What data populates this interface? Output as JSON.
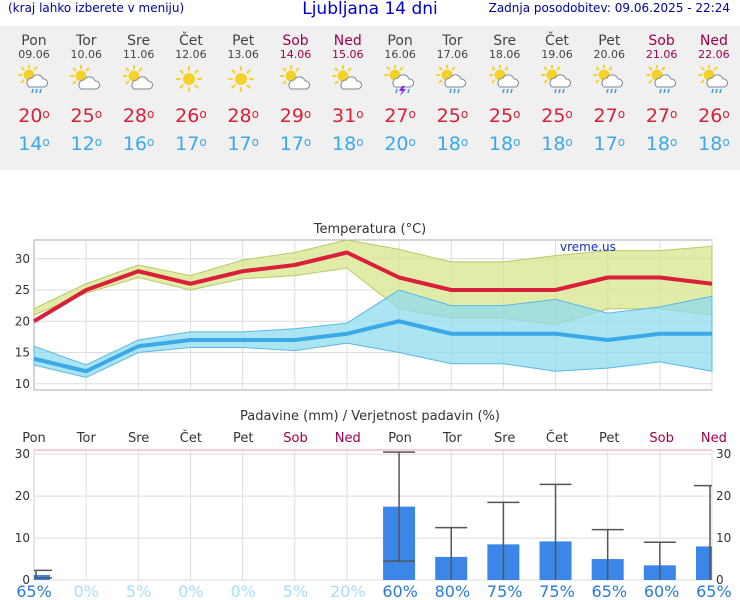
{
  "header": {
    "menu_hint": "(kraj lahko izberete v meniju)",
    "title": "Ljubljana 14 dni",
    "updated": "Zadnja posodobitev: 09.06.2025 - 22:24"
  },
  "days": [
    {
      "name": "Pon",
      "date": "09.06",
      "weekend": false,
      "icon": "sun-cloud-rain-icon",
      "tmax": "20",
      "tmin": "14"
    },
    {
      "name": "Tor",
      "date": "10.06",
      "weekend": false,
      "icon": "sun-cloud-icon",
      "tmax": "25",
      "tmin": "12"
    },
    {
      "name": "Sre",
      "date": "11.06",
      "weekend": false,
      "icon": "sun-cloud-icon",
      "tmax": "28",
      "tmin": "16"
    },
    {
      "name": "Čet",
      "date": "12.06",
      "weekend": false,
      "icon": "sun-icon",
      "tmax": "26",
      "tmin": "17"
    },
    {
      "name": "Pet",
      "date": "13.06",
      "weekend": false,
      "icon": "sun-icon",
      "tmax": "28",
      "tmin": "17"
    },
    {
      "name": "Sob",
      "date": "14.06",
      "weekend": true,
      "icon": "sun-cloud-icon",
      "tmax": "29",
      "tmin": "17"
    },
    {
      "name": "Ned",
      "date": "15.06",
      "weekend": true,
      "icon": "sun-cloud-icon",
      "tmax": "31",
      "tmin": "18"
    },
    {
      "name": "Pon",
      "date": "16.06",
      "weekend": false,
      "icon": "thunderstorm-icon",
      "tmax": "27",
      "tmin": "20"
    },
    {
      "name": "Tor",
      "date": "17.06",
      "weekend": false,
      "icon": "sun-cloud-rain-icon",
      "tmax": "25",
      "tmin": "18"
    },
    {
      "name": "Sre",
      "date": "18.06",
      "weekend": false,
      "icon": "sun-cloud-rain-icon",
      "tmax": "25",
      "tmin": "18"
    },
    {
      "name": "Čet",
      "date": "19.06",
      "weekend": false,
      "icon": "sun-cloud-rain-icon",
      "tmax": "25",
      "tmin": "18"
    },
    {
      "name": "Pet",
      "date": "20.06",
      "weekend": false,
      "icon": "sun-cloud-rain-icon",
      "tmax": "27",
      "tmin": "17"
    },
    {
      "name": "Sob",
      "date": "21.06",
      "weekend": true,
      "icon": "sun-cloud-rain-icon",
      "tmax": "27",
      "tmin": "18"
    },
    {
      "name": "Ned",
      "date": "22.06",
      "weekend": true,
      "icon": "sun-cloud-rain-icon",
      "tmax": "26",
      "tmin": "18"
    }
  ],
  "deg_symbol": "o",
  "colors": {
    "tmax": "#d8203a",
    "tmin": "#3ba8e8",
    "weekend": "#a0004a",
    "bar": "#3b86e6",
    "maxband": "#d6e68a",
    "minband": "#8fdcee",
    "overlap": "#7fcc7f"
  },
  "chart_data": [
    {
      "type": "line",
      "title": "Temperatura (°C)",
      "watermark": "vreme.us",
      "ylim": [
        9,
        33
      ],
      "yticks": [
        10,
        15,
        20,
        25,
        30
      ],
      "series": [
        {
          "name": "max",
          "values": [
            20,
            25,
            28,
            26,
            28,
            29,
            31,
            27,
            25,
            25,
            25,
            27,
            27,
            26
          ]
        },
        {
          "name": "max_low",
          "values": [
            21,
            24.5,
            27,
            25,
            26.8,
            27.3,
            28.5,
            22,
            20.5,
            20.5,
            19.5,
            22,
            22,
            21
          ]
        },
        {
          "name": "max_high",
          "values": [
            22,
            26,
            29,
            27.3,
            29.8,
            31,
            33,
            31.5,
            29.5,
            29.5,
            30.5,
            31.3,
            31.3,
            32
          ]
        },
        {
          "name": "min",
          "values": [
            14,
            12,
            16,
            17,
            17,
            17,
            18,
            20,
            18,
            18,
            18,
            17,
            18,
            18
          ]
        },
        {
          "name": "min_low",
          "values": [
            13,
            11,
            15,
            15.8,
            15.8,
            15.3,
            16.5,
            15,
            13.2,
            13.2,
            12,
            12.5,
            13.5,
            12
          ]
        },
        {
          "name": "min_high",
          "values": [
            16,
            13,
            17,
            18.3,
            18.3,
            18.8,
            19.7,
            25,
            22.5,
            22.5,
            23.5,
            21.3,
            22.3,
            24
          ]
        }
      ]
    },
    {
      "type": "bar",
      "title": "Padavine (mm) / Verjetnost padavin (%)",
      "categories": [
        "Pon",
        "Tor",
        "Sre",
        "Čet",
        "Pet",
        "Sob",
        "Ned",
        "Pon",
        "Tor",
        "Sre",
        "Čet",
        "Pet",
        "Sob",
        "Ned"
      ],
      "weekend": [
        false,
        false,
        false,
        false,
        false,
        true,
        true,
        false,
        false,
        false,
        false,
        false,
        true,
        true
      ],
      "ylim": [
        0,
        31
      ],
      "yticks": [
        0,
        10,
        20,
        30
      ],
      "values": [
        1.2,
        0,
        0,
        0,
        0,
        0,
        0,
        17.5,
        5.5,
        8.5,
        9.2,
        5,
        3.5,
        8
      ],
      "err_low": [
        0.5,
        0,
        0,
        0,
        0,
        0,
        0,
        4.5,
        0,
        0,
        0,
        0,
        0,
        0
      ],
      "err_high": [
        2.3,
        0,
        0,
        0,
        0,
        0,
        0,
        30.5,
        12.5,
        18.5,
        22.8,
        12,
        9,
        22.5
      ],
      "probability": [
        "65%",
        "0%",
        "5%",
        "0%",
        "0%",
        "5%",
        "20%",
        "60%",
        "80%",
        "75%",
        "75%",
        "65%",
        "60%",
        "65%"
      ]
    }
  ]
}
